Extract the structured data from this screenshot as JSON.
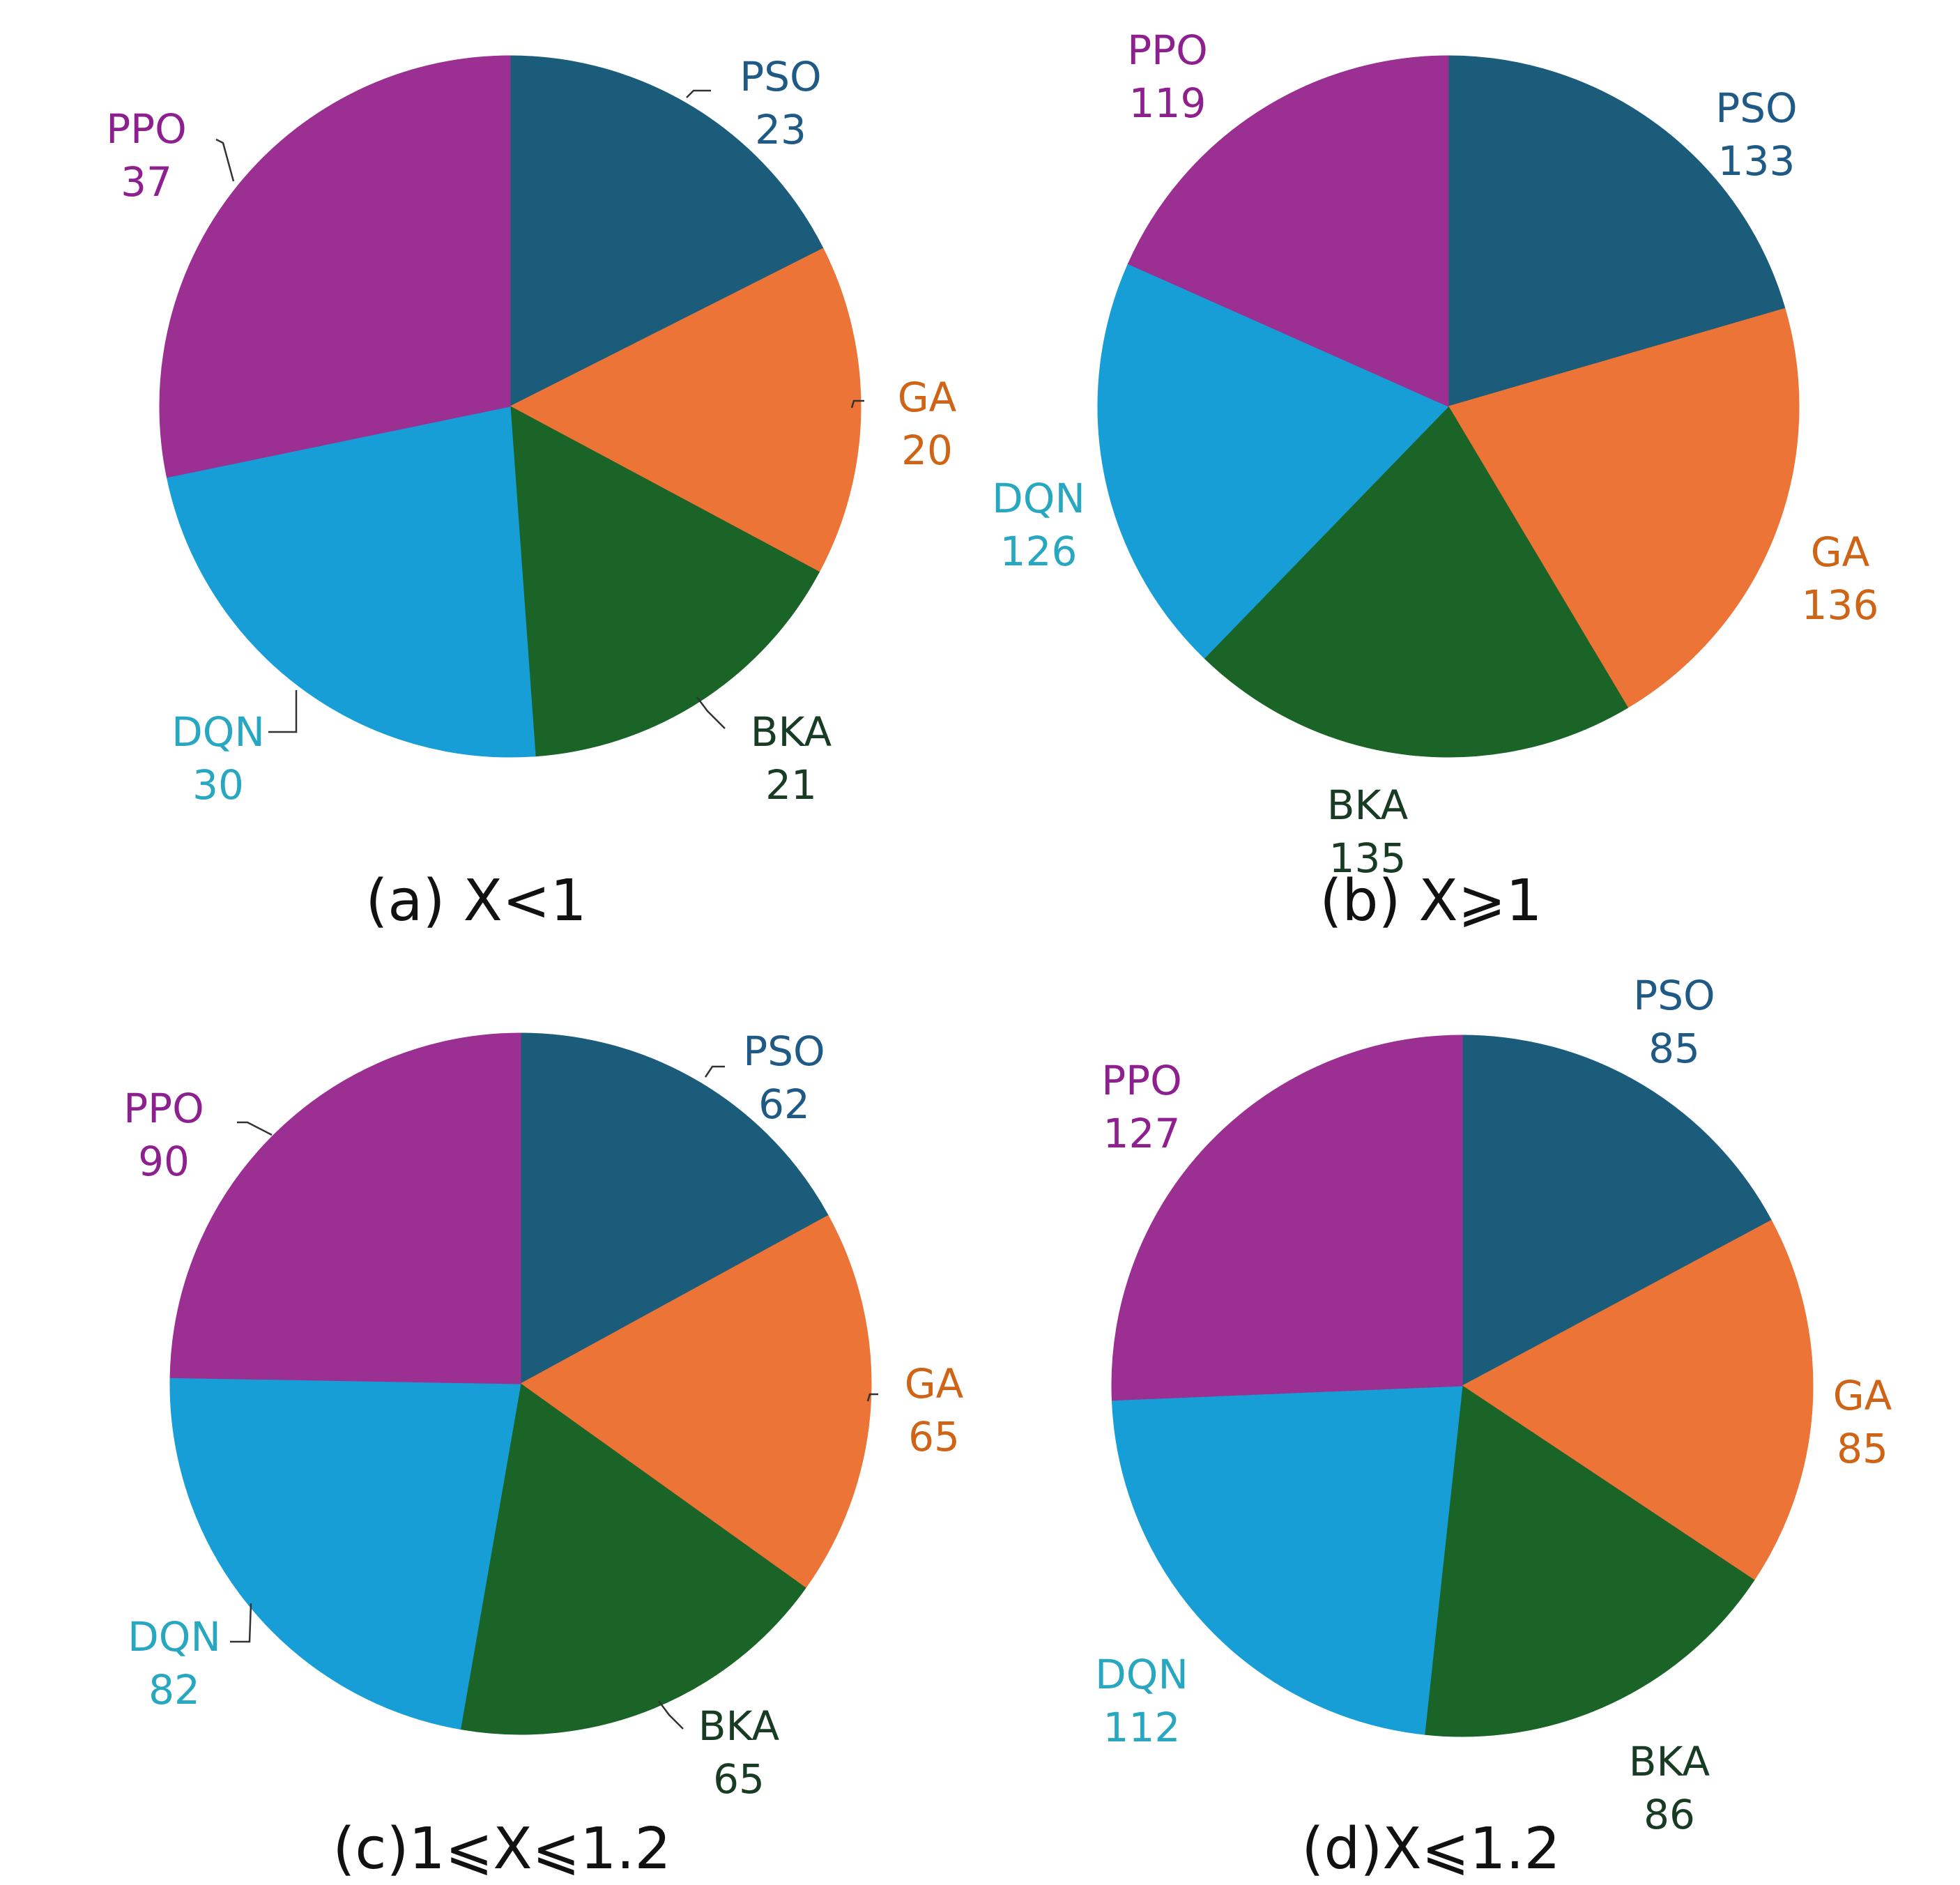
{
  "colors": {
    "PSO": "#1b5c7b",
    "GA": "#ec7436",
    "BKA": "#1b6428",
    "DQN": "#179ed6",
    "PPO": "#9b2f92"
  },
  "label_colors": {
    "PSO": "#1f5a86",
    "GA": "#cf6316",
    "BKA": "#173c23",
    "DQN": "#27a8c0",
    "PPO": "#8e1f8e"
  },
  "chart_data": [
    {
      "type": "pie",
      "caption": "(a) X<1",
      "slices": [
        {
          "name": "PSO",
          "value": 23
        },
        {
          "name": "GA",
          "value": 20
        },
        {
          "name": "BKA",
          "value": 21
        },
        {
          "name": "DQN",
          "value": 30
        },
        {
          "name": "PPO",
          "value": 37
        }
      ]
    },
    {
      "type": "pie",
      "caption": "(b) X⩾1",
      "slices": [
        {
          "name": "PSO",
          "value": 133
        },
        {
          "name": "GA",
          "value": 136
        },
        {
          "name": "BKA",
          "value": 135
        },
        {
          "name": "DQN",
          "value": 126
        },
        {
          "name": "PPO",
          "value": 119
        }
      ]
    },
    {
      "type": "pie",
      "caption": "(c)1⩽X⩽1.2",
      "slices": [
        {
          "name": "PSO",
          "value": 62
        },
        {
          "name": "GA",
          "value": 65
        },
        {
          "name": "BKA",
          "value": 65
        },
        {
          "name": "DQN",
          "value": 82
        },
        {
          "name": "PPO",
          "value": 90
        }
      ]
    },
    {
      "type": "pie",
      "caption": "(d)X⩽1.2",
      "slices": [
        {
          "name": "PSO",
          "value": 85
        },
        {
          "name": "GA",
          "value": 85
        },
        {
          "name": "BKA",
          "value": 86
        },
        {
          "name": "DQN",
          "value": 112
        },
        {
          "name": "PPO",
          "value": 127
        }
      ]
    }
  ]
}
